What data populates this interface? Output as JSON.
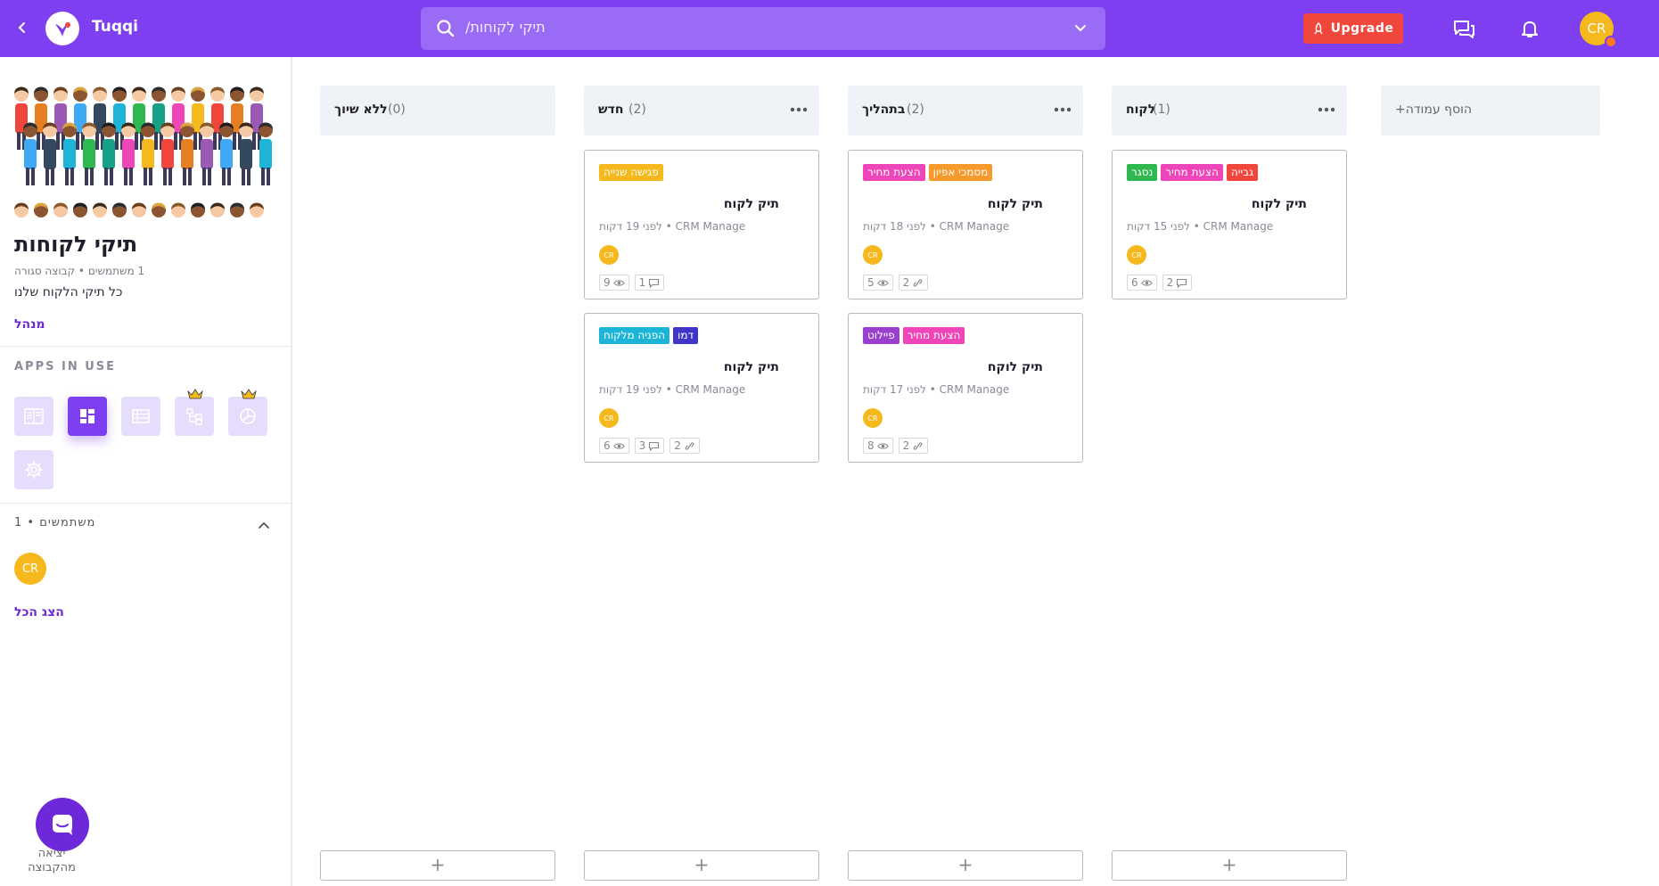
{
  "topbar": {
    "app_name": "Tuqqi",
    "search_value": "תיקי לקוחות/",
    "upgrade_label": "Upgrade",
    "avatar_initials": "CR",
    "brand_color": "#7d3ff0"
  },
  "sidebar": {
    "group_title": "תיקי לקוחות",
    "group_meta": "1 משתמשים • קבוצה סגורה",
    "group_description": "כל תיקי הלקוח שלנו",
    "manager_label": "מנהל",
    "apps_title": "APPS IN USE",
    "apps": [
      {
        "icon": "book-icon",
        "active": false
      },
      {
        "icon": "kanban-icon",
        "active": true
      },
      {
        "icon": "list-icon",
        "active": false
      },
      {
        "icon": "org-chart-icon",
        "active": false,
        "premium": true
      },
      {
        "icon": "pie-chart-icon",
        "active": false,
        "premium": true
      },
      {
        "icon": "gear-icon",
        "active": false
      }
    ],
    "users_title": "משתמשים • 1",
    "user_initials": "CR",
    "show_all_label": "הצג הכל",
    "leave_label": "יציאה מהקבוצה"
  },
  "board": {
    "add_column_label": "הוסף עמודה+",
    "columns": [
      {
        "name": "ללא שיוך",
        "count": "(0)",
        "cards": []
      },
      {
        "name": "חדש",
        "count": "(2)",
        "cards": [
          {
            "tags": [
              {
                "label": "פגישה שנייה",
                "color": "#f5b91d"
              }
            ],
            "title": "תיק לקוח",
            "meta": "CRM Manage • לפני 19 דקות",
            "avatar": "CR",
            "stats": [
              {
                "value": "9",
                "icon": "eye-icon"
              },
              {
                "value": "1",
                "icon": "comment-icon"
              }
            ]
          },
          {
            "tags": [
              {
                "label": "הפניה מלקוח",
                "color": "#1cb5d8"
              },
              {
                "label": "דמו",
                "color": "#3f35c9"
              }
            ],
            "title": "תיק לקוח",
            "meta": "CRM Manage • לפני 19 דקות",
            "avatar": "CR",
            "stats": [
              {
                "value": "6",
                "icon": "eye-icon"
              },
              {
                "value": "3",
                "icon": "comment-icon"
              },
              {
                "value": "2",
                "icon": "link-icon"
              }
            ]
          }
        ]
      },
      {
        "name": "בתהליך",
        "count": "(2)",
        "cards": [
          {
            "tags": [
              {
                "label": "הצעת מחיר",
                "color": "#ee46b8"
              },
              {
                "label": "מסמכי אפיון",
                "color": "#f79a2b"
              }
            ],
            "title": "תיק לקוח",
            "meta": "CRM Manage • לפני 18 דקות",
            "avatar": "CR",
            "stats": [
              {
                "value": "5",
                "icon": "eye-icon"
              },
              {
                "value": "2",
                "icon": "link-icon"
              }
            ]
          },
          {
            "tags": [
              {
                "label": "פיילוט",
                "color": "#9b3fd1"
              },
              {
                "label": "הצעת מחיר",
                "color": "#ee46b8"
              }
            ],
            "title": "תיק לוקח",
            "meta": "CRM Manage • לפני 17 דקות",
            "avatar": "CR",
            "stats": [
              {
                "value": "8",
                "icon": "eye-icon"
              },
              {
                "value": "2",
                "icon": "link-icon"
              }
            ]
          }
        ]
      },
      {
        "name": "לקוח",
        "count": "(1)",
        "cards": [
          {
            "tags": [
              {
                "label": "נסגר",
                "color": "#2fb84f"
              },
              {
                "label": "הצעת מחיר",
                "color": "#ee46b8"
              },
              {
                "label": "גבייה",
                "color": "#f0463c"
              }
            ],
            "title": "תיק לקוח",
            "meta": "CRM Manage • לפני 15 דקות",
            "avatar": "CR",
            "stats": [
              {
                "value": "6",
                "icon": "eye-icon"
              },
              {
                "value": "2",
                "icon": "comment-icon"
              }
            ]
          }
        ]
      }
    ]
  }
}
